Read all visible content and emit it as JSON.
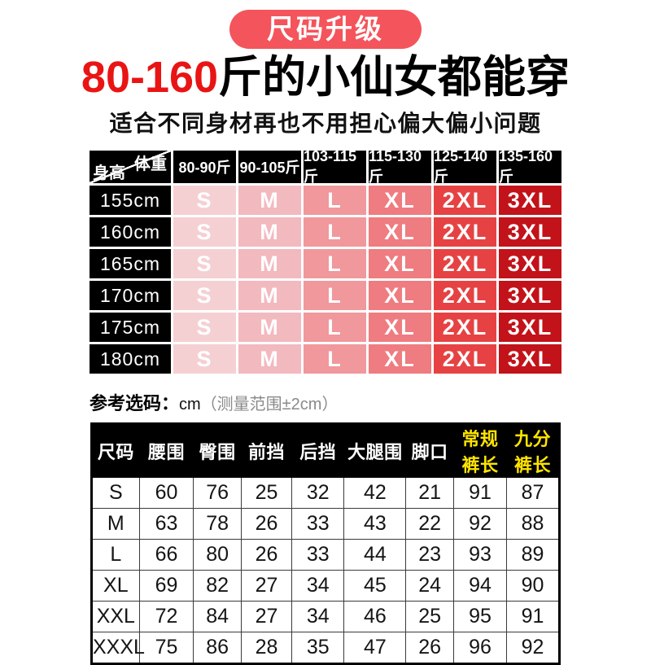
{
  "badge": {
    "label": "尺码升级"
  },
  "title": {
    "highlight": "80-160",
    "rest": "斤的小仙女都能穿"
  },
  "subtitle": "适合不同身材再也不用担心偏大偏小问题",
  "colors": {
    "badge_bg": "#f4545c",
    "title_red": "#e91414",
    "header_black": "#000000",
    "highlight_yellow": "#ffe500"
  },
  "size_grid": {
    "corner": {
      "top_label": "体重",
      "bottom_label": "身高"
    },
    "weight_headers": [
      "80-90斤",
      "90-105斤",
      "103-115斤",
      "115-130斤",
      "125-140斤",
      "135-160斤"
    ],
    "cell_colors": [
      "#f5d0d3",
      "#f2b9be",
      "#f0989c",
      "#ee7c80",
      "#e64243",
      "#c2121a"
    ],
    "rows": [
      {
        "height": "155cm",
        "sizes": [
          "S",
          "M",
          "L",
          "XL",
          "2XL",
          "3XL"
        ]
      },
      {
        "height": "160cm",
        "sizes": [
          "S",
          "M",
          "L",
          "XL",
          "2XL",
          "3XL"
        ]
      },
      {
        "height": "165cm",
        "sizes": [
          "S",
          "M",
          "L",
          "XL",
          "2XL",
          "3XL"
        ]
      },
      {
        "height": "170cm",
        "sizes": [
          "S",
          "M",
          "L",
          "XL",
          "2XL",
          "3XL"
        ]
      },
      {
        "height": "175cm",
        "sizes": [
          "S",
          "M",
          "L",
          "XL",
          "2XL",
          "3XL"
        ]
      },
      {
        "height": "180cm",
        "sizes": [
          "S",
          "M",
          "L",
          "XL",
          "2XL",
          "3XL"
        ]
      }
    ]
  },
  "note": {
    "label": "参考选码：",
    "unit": "cm",
    "range": "（测量范围±2cm）"
  },
  "measure_table": {
    "columns": [
      {
        "label": "尺码",
        "highlight": false
      },
      {
        "label": "腰围",
        "highlight": false
      },
      {
        "label": "臀围",
        "highlight": false
      },
      {
        "label": "前挡",
        "highlight": false
      },
      {
        "label": "后挡",
        "highlight": false
      },
      {
        "label": "大腿围",
        "highlight": false
      },
      {
        "label": "脚口",
        "highlight": false
      },
      {
        "label": "常规裤长",
        "highlight": true
      },
      {
        "label": "九分裤长",
        "highlight": true
      }
    ],
    "rows": [
      {
        "size": "S",
        "values": [
          60,
          76,
          25,
          32,
          42,
          21,
          91,
          87
        ]
      },
      {
        "size": "M",
        "values": [
          63,
          78,
          26,
          33,
          43,
          22,
          92,
          88
        ]
      },
      {
        "size": "L",
        "values": [
          66,
          80,
          26,
          33,
          44,
          23,
          93,
          89
        ]
      },
      {
        "size": "XL",
        "values": [
          69,
          82,
          27,
          34,
          45,
          24,
          94,
          90
        ]
      },
      {
        "size": "XXL",
        "values": [
          72,
          84,
          27,
          34,
          46,
          25,
          95,
          91
        ]
      },
      {
        "size": "XXXL",
        "values": [
          75,
          86,
          28,
          35,
          47,
          26,
          96,
          92
        ]
      }
    ]
  }
}
